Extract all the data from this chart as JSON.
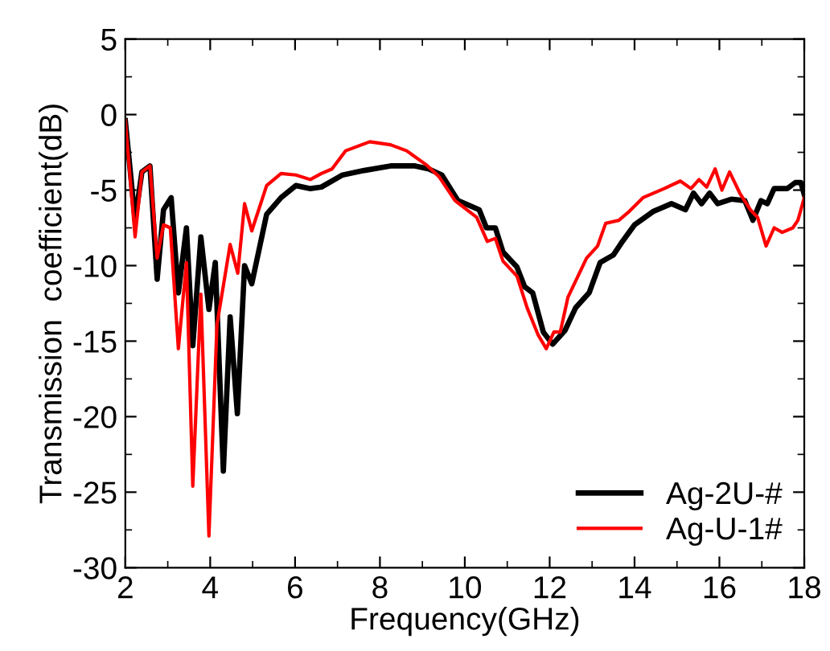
{
  "chart_data": {
    "type": "line",
    "xlabel": "Frequency(GHz)",
    "ylabel": "Transmission  coefficient(dB)",
    "xlim": [
      2,
      18
    ],
    "xticks": [
      2,
      4,
      6,
      8,
      10,
      12,
      14,
      16,
      18
    ],
    "ylim": [
      -30,
      5
    ],
    "yticks": [
      -30,
      -25,
      -20,
      -15,
      -10,
      -5,
      0,
      5
    ],
    "grid": false,
    "legend": "bottom right",
    "marker": "none",
    "line_style": "solid",
    "series": [
      {
        "name": "Ag-2U-#",
        "color": "#000000",
        "x": [
          2.0,
          2.23,
          2.39,
          2.58,
          2.75,
          2.9,
          3.08,
          3.25,
          3.44,
          3.59,
          3.78,
          3.97,
          4.12,
          4.31,
          4.47,
          4.64,
          4.81,
          4.98,
          5.33,
          5.67,
          6.02,
          6.36,
          6.62,
          7.12,
          7.63,
          8.25,
          8.83,
          9.15,
          9.46,
          9.84,
          10.34,
          10.51,
          10.72,
          10.9,
          11.23,
          11.41,
          11.6,
          11.85,
          12.07,
          12.36,
          12.61,
          12.93,
          13.19,
          13.5,
          13.69,
          14.0,
          14.45,
          14.87,
          15.2,
          15.39,
          15.58,
          15.77,
          15.96,
          16.28,
          16.6,
          16.79,
          16.98,
          17.13,
          17.29,
          17.6,
          17.79,
          17.92,
          18.0
        ],
        "values": [
          -0.4,
          -7.0,
          -3.8,
          -3.4,
          -10.9,
          -6.3,
          -5.5,
          -11.8,
          -7.5,
          -15.3,
          -8.1,
          -12.9,
          -9.8,
          -23.6,
          -13.4,
          -19.8,
          -10.0,
          -11.2,
          -6.6,
          -5.5,
          -4.7,
          -4.9,
          -4.8,
          -4.0,
          -3.7,
          -3.4,
          -3.4,
          -3.6,
          -4.0,
          -5.7,
          -6.3,
          -7.5,
          -7.5,
          -9.1,
          -10.1,
          -11.4,
          -11.8,
          -14.4,
          -15.2,
          -14.3,
          -12.8,
          -11.8,
          -9.8,
          -9.3,
          -8.5,
          -7.3,
          -6.4,
          -5.9,
          -6.3,
          -5.2,
          -5.9,
          -5.2,
          -5.9,
          -5.6,
          -5.7,
          -7.0,
          -5.7,
          -5.9,
          -4.9,
          -4.9,
          -4.5,
          -4.5,
          -5.3
        ]
      },
      {
        "name": "Ag-U-1#",
        "color": "#ff0000",
        "x": [
          2.0,
          2.23,
          2.39,
          2.58,
          2.75,
          2.9,
          3.06,
          3.25,
          3.44,
          3.59,
          3.78,
          3.97,
          4.16,
          4.47,
          4.65,
          4.81,
          4.98,
          5.33,
          5.67,
          6.02,
          6.36,
          6.62,
          6.87,
          7.19,
          7.76,
          8.25,
          8.63,
          9.08,
          9.39,
          9.77,
          10.28,
          10.53,
          10.72,
          10.9,
          11.23,
          11.47,
          11.73,
          11.92,
          12.1,
          12.25,
          12.43,
          12.87,
          13.13,
          13.32,
          13.63,
          13.88,
          14.2,
          14.7,
          15.08,
          15.33,
          15.52,
          15.7,
          15.9,
          16.06,
          16.24,
          16.48,
          16.73,
          16.9,
          17.1,
          17.29,
          17.48,
          17.73,
          17.85,
          18.0
        ],
        "values": [
          -0.4,
          -8.1,
          -3.8,
          -3.4,
          -9.5,
          -7.3,
          -7.5,
          -15.5,
          -9.8,
          -24.6,
          -11.9,
          -27.9,
          -13.9,
          -8.6,
          -10.5,
          -5.9,
          -7.7,
          -4.7,
          -3.9,
          -4.0,
          -4.3,
          -3.9,
          -3.6,
          -2.4,
          -1.8,
          -2.0,
          -2.4,
          -3.3,
          -4.1,
          -5.7,
          -6.8,
          -8.4,
          -8.2,
          -9.7,
          -10.7,
          -12.8,
          -14.6,
          -15.5,
          -14.4,
          -14.4,
          -12.1,
          -9.5,
          -8.7,
          -7.2,
          -7.0,
          -6.4,
          -5.5,
          -4.9,
          -4.4,
          -4.9,
          -4.3,
          -4.8,
          -3.6,
          -5.0,
          -3.8,
          -5.2,
          -6.3,
          -6.8,
          -8.7,
          -7.5,
          -7.8,
          -7.5,
          -7.0,
          -5.5
        ]
      }
    ]
  }
}
